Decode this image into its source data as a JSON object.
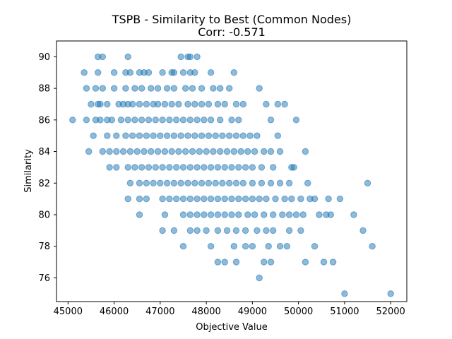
{
  "chart_data": {
    "type": "scatter",
    "title": "TSPB - Similarity to Best (Common Nodes)",
    "subtitle": "Corr: -0.571",
    "xlabel": "Objective Value",
    "ylabel": "Similarity",
    "xlim": [
      44750,
      52350
    ],
    "ylim": [
      74.5,
      91.0
    ],
    "xticks": [
      45000,
      46000,
      47000,
      48000,
      49000,
      50000,
      51000,
      52000
    ],
    "yticks": [
      76,
      78,
      80,
      82,
      84,
      86,
      88,
      90
    ],
    "grid": false,
    "legend": "none",
    "marker_color": "#1f77b4",
    "marker_alpha": 0.5,
    "points": [
      [
        45650,
        90
      ],
      [
        45750,
        90
      ],
      [
        46300,
        90
      ],
      [
        47450,
        90
      ],
      [
        47600,
        90
      ],
      [
        47650,
        90
      ],
      [
        47800,
        90
      ],
      [
        45350,
        89
      ],
      [
        45650,
        89
      ],
      [
        46000,
        89
      ],
      [
        46250,
        89
      ],
      [
        46350,
        89
      ],
      [
        46550,
        89
      ],
      [
        46650,
        89
      ],
      [
        46750,
        89
      ],
      [
        47050,
        89
      ],
      [
        47250,
        89
      ],
      [
        47300,
        89
      ],
      [
        47500,
        89
      ],
      [
        47650,
        89
      ],
      [
        47750,
        89
      ],
      [
        48100,
        89
      ],
      [
        48600,
        89
      ],
      [
        45400,
        88
      ],
      [
        45600,
        88
      ],
      [
        45750,
        88
      ],
      [
        46000,
        88
      ],
      [
        46250,
        88
      ],
      [
        46450,
        88
      ],
      [
        46600,
        88
      ],
      [
        46800,
        88
      ],
      [
        46950,
        88
      ],
      [
        47150,
        88
      ],
      [
        47300,
        88
      ],
      [
        47550,
        88
      ],
      [
        47700,
        88
      ],
      [
        47900,
        88
      ],
      [
        48150,
        88
      ],
      [
        48300,
        88
      ],
      [
        48500,
        88
      ],
      [
        49150,
        88
      ],
      [
        45500,
        87
      ],
      [
        45650,
        87
      ],
      [
        45700,
        87
      ],
      [
        45850,
        87
      ],
      [
        46100,
        87
      ],
      [
        46200,
        87
      ],
      [
        46300,
        87
      ],
      [
        46400,
        87
      ],
      [
        46550,
        87
      ],
      [
        46700,
        87
      ],
      [
        46850,
        87
      ],
      [
        46950,
        87
      ],
      [
        47100,
        87
      ],
      [
        47250,
        87
      ],
      [
        47400,
        87
      ],
      [
        47600,
        87
      ],
      [
        47750,
        87
      ],
      [
        47900,
        87
      ],
      [
        48050,
        87
      ],
      [
        48250,
        87
      ],
      [
        48400,
        87
      ],
      [
        48650,
        87
      ],
      [
        48800,
        87
      ],
      [
        49300,
        87
      ],
      [
        49550,
        87
      ],
      [
        49700,
        87
      ],
      [
        45100,
        86
      ],
      [
        45400,
        86
      ],
      [
        45600,
        86
      ],
      [
        45700,
        86
      ],
      [
        45850,
        86
      ],
      [
        45950,
        86
      ],
      [
        46150,
        86
      ],
      [
        46300,
        86
      ],
      [
        46450,
        86
      ],
      [
        46600,
        86
      ],
      [
        46750,
        86
      ],
      [
        46900,
        86
      ],
      [
        47050,
        86
      ],
      [
        47200,
        86
      ],
      [
        47350,
        86
      ],
      [
        47500,
        86
      ],
      [
        47650,
        86
      ],
      [
        47800,
        86
      ],
      [
        47950,
        86
      ],
      [
        48100,
        86
      ],
      [
        48300,
        86
      ],
      [
        48550,
        86
      ],
      [
        48700,
        86
      ],
      [
        49400,
        86
      ],
      [
        49950,
        86
      ],
      [
        45550,
        85
      ],
      [
        45850,
        85
      ],
      [
        46050,
        85
      ],
      [
        46250,
        85
      ],
      [
        46400,
        85
      ],
      [
        46550,
        85
      ],
      [
        46700,
        85
      ],
      [
        46850,
        85
      ],
      [
        47000,
        85
      ],
      [
        47150,
        85
      ],
      [
        47300,
        85
      ],
      [
        47450,
        85
      ],
      [
        47600,
        85
      ],
      [
        47750,
        85
      ],
      [
        47900,
        85
      ],
      [
        48050,
        85
      ],
      [
        48200,
        85
      ],
      [
        48350,
        85
      ],
      [
        48500,
        85
      ],
      [
        48650,
        85
      ],
      [
        48800,
        85
      ],
      [
        48950,
        85
      ],
      [
        49100,
        85
      ],
      [
        49550,
        85
      ],
      [
        45450,
        84
      ],
      [
        45750,
        84
      ],
      [
        45900,
        84
      ],
      [
        46050,
        84
      ],
      [
        46200,
        84
      ],
      [
        46350,
        84
      ],
      [
        46500,
        84
      ],
      [
        46650,
        84
      ],
      [
        46800,
        84
      ],
      [
        46950,
        84
      ],
      [
        47100,
        84
      ],
      [
        47250,
        84
      ],
      [
        47400,
        84
      ],
      [
        47550,
        84
      ],
      [
        47700,
        84
      ],
      [
        47850,
        84
      ],
      [
        48000,
        84
      ],
      [
        48150,
        84
      ],
      [
        48300,
        84
      ],
      [
        48450,
        84
      ],
      [
        48600,
        84
      ],
      [
        48750,
        84
      ],
      [
        48900,
        84
      ],
      [
        49050,
        84
      ],
      [
        49250,
        84
      ],
      [
        49400,
        84
      ],
      [
        49600,
        84
      ],
      [
        50150,
        84
      ],
      [
        45900,
        83
      ],
      [
        46050,
        83
      ],
      [
        46300,
        83
      ],
      [
        46450,
        83
      ],
      [
        46600,
        83
      ],
      [
        46750,
        83
      ],
      [
        46900,
        83
      ],
      [
        47050,
        83
      ],
      [
        47200,
        83
      ],
      [
        47350,
        83
      ],
      [
        47500,
        83
      ],
      [
        47650,
        83
      ],
      [
        47800,
        83
      ],
      [
        47950,
        83
      ],
      [
        48100,
        83
      ],
      [
        48250,
        83
      ],
      [
        48400,
        83
      ],
      [
        48550,
        83
      ],
      [
        48700,
        83
      ],
      [
        48850,
        83
      ],
      [
        49000,
        83
      ],
      [
        49200,
        83
      ],
      [
        49450,
        83
      ],
      [
        49850,
        83
      ],
      [
        49900,
        83
      ],
      [
        46350,
        82
      ],
      [
        46550,
        82
      ],
      [
        46700,
        82
      ],
      [
        46850,
        82
      ],
      [
        47000,
        82
      ],
      [
        47150,
        82
      ],
      [
        47300,
        82
      ],
      [
        47450,
        82
      ],
      [
        47600,
        82
      ],
      [
        47750,
        82
      ],
      [
        47900,
        82
      ],
      [
        48050,
        82
      ],
      [
        48200,
        82
      ],
      [
        48350,
        82
      ],
      [
        48500,
        82
      ],
      [
        48650,
        82
      ],
      [
        48800,
        82
      ],
      [
        49000,
        82
      ],
      [
        49200,
        82
      ],
      [
        49400,
        82
      ],
      [
        49600,
        82
      ],
      [
        49800,
        82
      ],
      [
        50200,
        82
      ],
      [
        51500,
        82
      ],
      [
        46300,
        81
      ],
      [
        46550,
        81
      ],
      [
        46700,
        81
      ],
      [
        47050,
        81
      ],
      [
        47200,
        81
      ],
      [
        47350,
        81
      ],
      [
        47500,
        81
      ],
      [
        47650,
        81
      ],
      [
        47800,
        81
      ],
      [
        47950,
        81
      ],
      [
        48100,
        81
      ],
      [
        48250,
        81
      ],
      [
        48400,
        81
      ],
      [
        48550,
        81
      ],
      [
        48700,
        81
      ],
      [
        48850,
        81
      ],
      [
        49000,
        81
      ],
      [
        49150,
        81
      ],
      [
        49300,
        81
      ],
      [
        49500,
        81
      ],
      [
        49700,
        81
      ],
      [
        49850,
        81
      ],
      [
        50050,
        81
      ],
      [
        50250,
        81
      ],
      [
        50350,
        81
      ],
      [
        50650,
        81
      ],
      [
        50900,
        81
      ],
      [
        46550,
        80
      ],
      [
        47100,
        80
      ],
      [
        47500,
        80
      ],
      [
        47650,
        80
      ],
      [
        47800,
        80
      ],
      [
        47950,
        80
      ],
      [
        48100,
        80
      ],
      [
        48250,
        80
      ],
      [
        48400,
        80
      ],
      [
        48550,
        80
      ],
      [
        48700,
        80
      ],
      [
        48900,
        80
      ],
      [
        49050,
        80
      ],
      [
        49250,
        80
      ],
      [
        49450,
        80
      ],
      [
        49650,
        80
      ],
      [
        49800,
        80
      ],
      [
        49950,
        80
      ],
      [
        50100,
        80
      ],
      [
        50450,
        80
      ],
      [
        50600,
        80
      ],
      [
        50700,
        80
      ],
      [
        51200,
        80
      ],
      [
        47050,
        79
      ],
      [
        47300,
        79
      ],
      [
        47650,
        79
      ],
      [
        47800,
        79
      ],
      [
        48000,
        79
      ],
      [
        48250,
        79
      ],
      [
        48450,
        79
      ],
      [
        48650,
        79
      ],
      [
        48850,
        79
      ],
      [
        49100,
        79
      ],
      [
        49300,
        79
      ],
      [
        49450,
        79
      ],
      [
        49800,
        79
      ],
      [
        50050,
        79
      ],
      [
        51400,
        79
      ],
      [
        47500,
        78
      ],
      [
        48100,
        78
      ],
      [
        48600,
        78
      ],
      [
        48850,
        78
      ],
      [
        49000,
        78
      ],
      [
        49350,
        78
      ],
      [
        49600,
        78
      ],
      [
        49750,
        78
      ],
      [
        50350,
        78
      ],
      [
        51600,
        78
      ],
      [
        48250,
        77
      ],
      [
        48400,
        77
      ],
      [
        48650,
        77
      ],
      [
        49250,
        77
      ],
      [
        49400,
        77
      ],
      [
        50150,
        77
      ],
      [
        50550,
        77
      ],
      [
        50750,
        77
      ],
      [
        49150,
        76
      ],
      [
        51000,
        75
      ],
      [
        52000,
        75
      ]
    ]
  }
}
